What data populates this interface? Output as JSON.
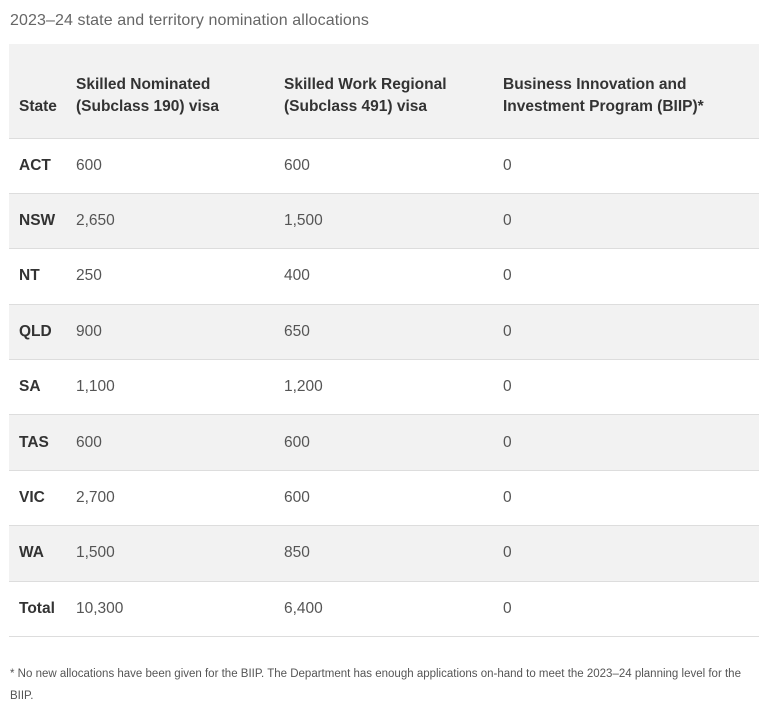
{
  "caption": "2023–24 state and territory nomination allocations",
  "table": {
    "headers": [
      "State",
      "Skilled Nominated (Subclass 190) visa",
      "Skilled Work Regional (Subclass 491) visa",
      "Business Innovation and Investment Program (BIIP)*"
    ],
    "rows": [
      [
        "ACT",
        "600",
        "600",
        "0"
      ],
      [
        "NSW",
        "2,650",
        "1,500",
        "0"
      ],
      [
        "NT",
        "250",
        "400",
        "0"
      ],
      [
        "QLD",
        "900",
        "650",
        "0"
      ],
      [
        "SA",
        "1,100",
        "1,200",
        "0"
      ],
      [
        "TAS",
        "600",
        "600",
        "0"
      ],
      [
        "VIC",
        "2,700",
        "600",
        "0"
      ],
      [
        "WA",
        "1,500",
        "850",
        "0"
      ],
      [
        "Total",
        "10,300",
        "6,400",
        "0"
      ]
    ]
  },
  "footnote": "* No new allocations have been given for the BIIP. The Department has enough applications on-hand to meet the 2023–24 planning level for the BIIP."
}
